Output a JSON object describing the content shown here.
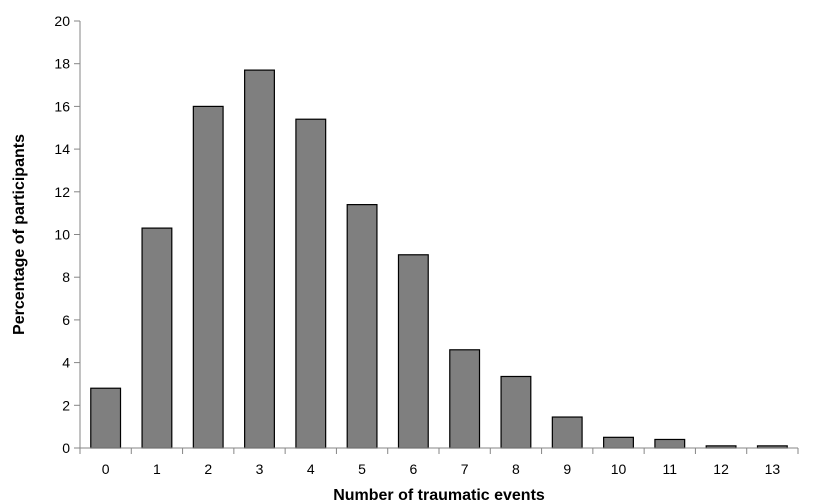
{
  "chart_data": {
    "type": "bar",
    "title": "",
    "xlabel": "Number of traumatic events",
    "ylabel": "Percentage of participants",
    "categories": [
      "0",
      "1",
      "2",
      "3",
      "4",
      "5",
      "6",
      "7",
      "8",
      "9",
      "10",
      "11",
      "12",
      "13"
    ],
    "values": [
      2.8,
      10.3,
      16.0,
      17.7,
      15.4,
      11.4,
      9.05,
      4.6,
      3.35,
      1.45,
      0.5,
      0.4,
      0.1,
      0.1
    ],
    "ylim": [
      0,
      20
    ],
    "yticks": [
      "0",
      "2",
      "4",
      "6",
      "8",
      "10",
      "12",
      "14",
      "16",
      "18",
      "20"
    ],
    "grid": false,
    "legend": "none",
    "bar_color": "#7f7f7f",
    "bar_edge_color": "#000000",
    "axis_color": "#868686"
  }
}
